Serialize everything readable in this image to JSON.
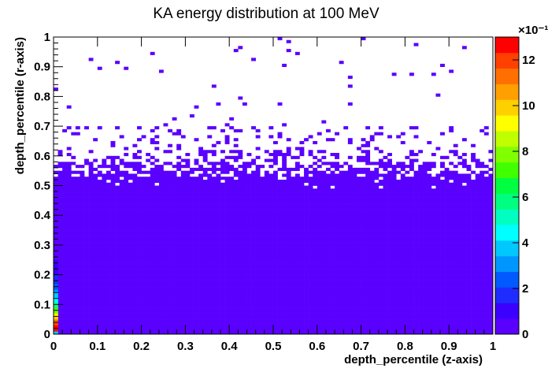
{
  "chart_data": {
    "type": "heatmap",
    "title": "KA energy distribution at 100 MeV",
    "xlabel": "depth_percentile (z-axis)",
    "ylabel": "depth_percentile (r-axis)",
    "xlim": [
      0,
      1
    ],
    "ylim": [
      0,
      1
    ],
    "x_ticks": [
      "0",
      "0.1",
      "0.2",
      "0.3",
      "0.4",
      "0.5",
      "0.6",
      "0.7",
      "0.8",
      "0.9",
      "1"
    ],
    "y_ticks": [
      "0",
      "0.1",
      "0.2",
      "0.3",
      "0.4",
      "0.5",
      "0.6",
      "0.7",
      "0.8",
      "0.9",
      "1"
    ],
    "bins": {
      "nx": 100,
      "ny": 100
    },
    "colorbar": {
      "ticks": [
        "0",
        "2",
        "4",
        "6",
        "8",
        "10",
        "12"
      ],
      "exponent_label": "×10⁻¹",
      "range": [
        0,
        13
      ],
      "palette": [
        "#5a00ff",
        "#3c00ff",
        "#1e2cff",
        "#005aff",
        "#0096ff",
        "#00c8ff",
        "#00ffff",
        "#00ffc0",
        "#00ff80",
        "#00ff40",
        "#40ff00",
        "#80ff00",
        "#c0ff00",
        "#ffff00",
        "#ffd000",
        "#ffa000",
        "#ff7000",
        "#ff4000",
        "#ff0000"
      ]
    },
    "description_of_fill": {
      "filled_region": "all z bins, r from 0 to ~0.54 at low/mid value (purple)",
      "sparse_region": "r ~0.54 to ~0.70 partially filled, isolated bins up to r=1",
      "hot_column": "first z bin (z=0-0.01), r 0-0.3, values rising toward ~1.3 near r≈0.1"
    }
  }
}
